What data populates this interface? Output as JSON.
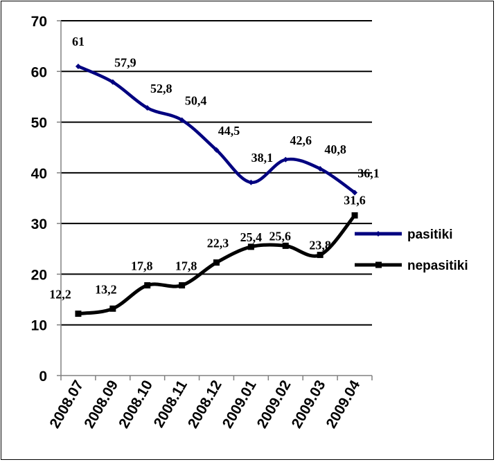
{
  "chart_data": {
    "type": "line",
    "categories": [
      "2008.07",
      "2008.09",
      "2008.10",
      "2008.11",
      "2008.12",
      "2009.01",
      "2009.02",
      "2009.03",
      "2009.04"
    ],
    "series": [
      {
        "name": "pasitiki",
        "values": [
          61,
          57.9,
          52.8,
          50.4,
          44.5,
          38.1,
          42.6,
          40.8,
          36.1
        ],
        "labels": [
          "61",
          "57,9",
          "52,8",
          "50,4",
          "44,5",
          "38,1",
          "42,6",
          "40,8",
          "36,1"
        ],
        "color": "#000080",
        "marker": "diamond"
      },
      {
        "name": "nepasitiki",
        "values": [
          12.2,
          13.2,
          17.8,
          17.8,
          22.3,
          25.4,
          25.6,
          23.8,
          31.6
        ],
        "labels": [
          "12,2",
          "13,2",
          "17,8",
          "17,8",
          "22,3",
          "25,4",
          "25,6",
          "23,8",
          "31,6"
        ],
        "color": "#000000",
        "marker": "square"
      }
    ],
    "ylim": [
      0,
      70
    ],
    "yticks": [
      "0",
      "10",
      "20",
      "30",
      "40",
      "50",
      "60",
      "70"
    ],
    "ytick_values": [
      0,
      10,
      20,
      30,
      40,
      50,
      60,
      70
    ],
    "grid": true,
    "smooth": true,
    "legend_position": "right",
    "title": "",
    "xlabel": "",
    "ylabel": ""
  }
}
